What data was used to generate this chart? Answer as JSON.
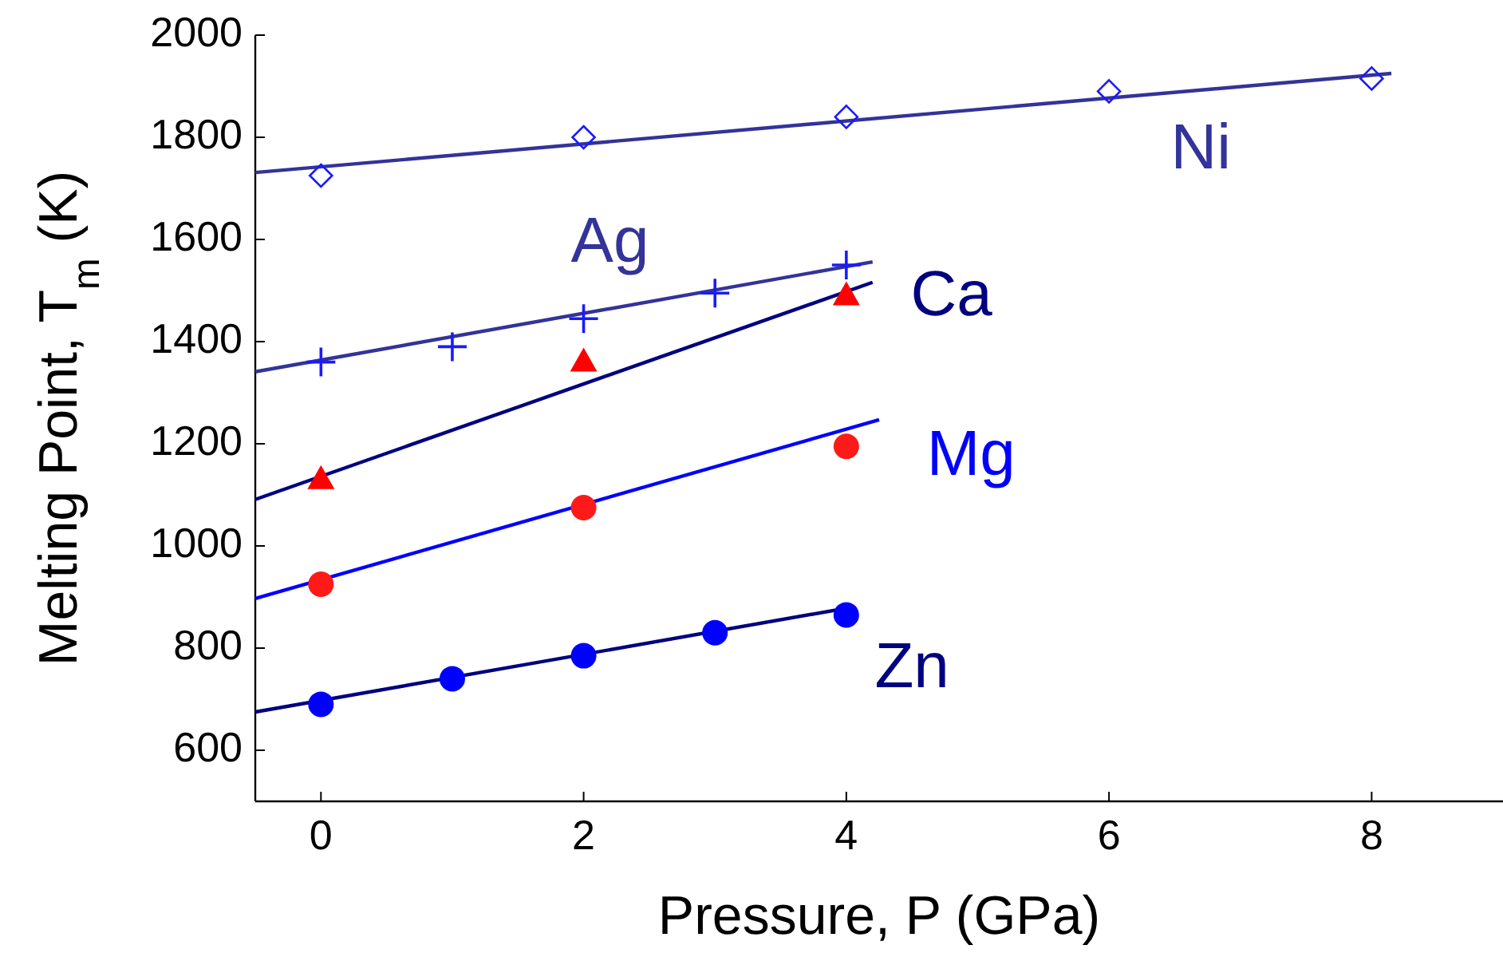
{
  "chart_data": {
    "type": "scatter",
    "xlabel": "Pressure, P (GPa)",
    "ylabel": "Melting Point, T$_{m}$ (K)",
    "xlim": [
      -0.5,
      9
    ],
    "ylim": [
      500,
      2000
    ],
    "xticks": [
      0,
      2,
      4,
      6,
      8
    ],
    "yticks": [
      600,
      800,
      1000,
      1200,
      1400,
      1600,
      1800,
      2000
    ],
    "grid": false,
    "series": [
      {
        "marker": "diamond",
        "color": "#1a1aff",
        "x": [
          0,
          2,
          4,
          6,
          8
        ],
        "values": [
          1725,
          1800,
          1840,
          1890,
          1915
        ]
      },
      {
        "type": "line",
        "name": "Ni",
        "color": "#333399",
        "x": [
          -0.5,
          8.15
        ],
        "values": [
          1731,
          1925
        ]
      },
      {
        "marker": "cross",
        "color": "#1a1aff",
        "x": [
          0,
          1,
          2,
          3,
          4
        ],
        "values": [
          1360,
          1390,
          1445,
          1495,
          1550
        ]
      },
      {
        "type": "line",
        "name": "Ag",
        "color": "#333399",
        "x": [
          -0.5,
          4.2
        ],
        "values": [
          1341,
          1556
        ]
      },
      {
        "marker": "triangle",
        "color": "#ff0000",
        "x": [
          0,
          2,
          4
        ],
        "values": [
          1130,
          1360,
          1490
        ]
      },
      {
        "type": "line",
        "name": "Ca",
        "color": "#000080",
        "x": [
          -0.5,
          4.2
        ],
        "values": [
          1091,
          1516
        ]
      },
      {
        "marker": "circle",
        "color": "#ff1a1a",
        "x": [
          0,
          2,
          4
        ],
        "values": [
          925,
          1075,
          1195
        ]
      },
      {
        "type": "line",
        "name": "Mg",
        "color": "#0000ff",
        "x": [
          -0.5,
          4.25
        ],
        "values": [
          897,
          1247
        ]
      },
      {
        "marker": "circle",
        "color": "#0000ff",
        "x": [
          0,
          1,
          2,
          3,
          4
        ],
        "values": [
          690,
          740,
          785,
          830,
          865
        ]
      },
      {
        "type": "line",
        "name": "Zn",
        "color": "#000080",
        "x": [
          -0.5,
          4
        ],
        "values": [
          675,
          878
        ]
      }
    ]
  }
}
